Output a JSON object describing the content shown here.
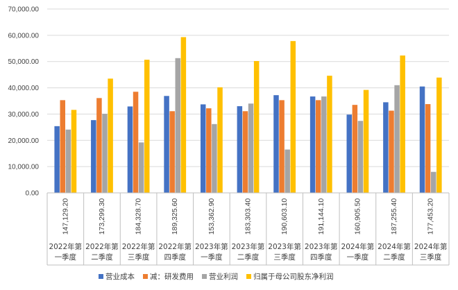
{
  "chart_data": {
    "type": "bar",
    "title": "",
    "xlabel": "",
    "ylabel": "",
    "ylim": [
      0,
      70000
    ],
    "y_ticks": [
      "0.00",
      "10,000.00",
      "20,000.00",
      "30,000.00",
      "40,000.00",
      "50,000.00",
      "60,000.00",
      "70,000.00"
    ],
    "grid": true,
    "legend_position": "bottom",
    "categories": [
      [
        "2022年第",
        "一季度"
      ],
      [
        "2022年第",
        "二季度"
      ],
      [
        "2022年第",
        "三季度"
      ],
      [
        "2022年第",
        "四季度"
      ],
      [
        "2023年第",
        "一季度"
      ],
      [
        "2023年第",
        "二季度"
      ],
      [
        "2023年第",
        "三季度"
      ],
      [
        "2023年第",
        "四季度"
      ],
      [
        "2024年第",
        "一季度"
      ],
      [
        "2024年第",
        "二季度"
      ],
      [
        "2024年第",
        "三季度"
      ]
    ],
    "table_row_values": [
      "147,129.20",
      "173,299.30",
      "184,328.70",
      "189,325.60",
      "153,362.90",
      "183,303.40",
      "190,603.10",
      "191,144.10",
      "160,905.50",
      "187,255.40",
      "177,453.20"
    ],
    "series": [
      {
        "name": "营业成本",
        "color": "#4472C4",
        "values": [
          25400,
          27700,
          32900,
          36900,
          33700,
          33000,
          37200,
          36700,
          29800,
          34500,
          40500
        ]
      },
      {
        "name": "减：研发费用",
        "color": "#ED7D31",
        "values": [
          35300,
          36100,
          38500,
          31100,
          32200,
          31100,
          35300,
          35300,
          33500,
          31300,
          33800
        ]
      },
      {
        "name": "营业利润",
        "color": "#A5A5A5",
        "values": [
          24100,
          30100,
          19200,
          51300,
          26200,
          34000,
          16500,
          36700,
          27400,
          41000,
          8000
        ]
      },
      {
        "name": "归属于母公司股东净利润",
        "color": "#FFC000",
        "values": [
          31600,
          43500,
          50700,
          59300,
          40200,
          50200,
          57800,
          44600,
          39200,
          52300,
          43900
        ]
      }
    ]
  }
}
